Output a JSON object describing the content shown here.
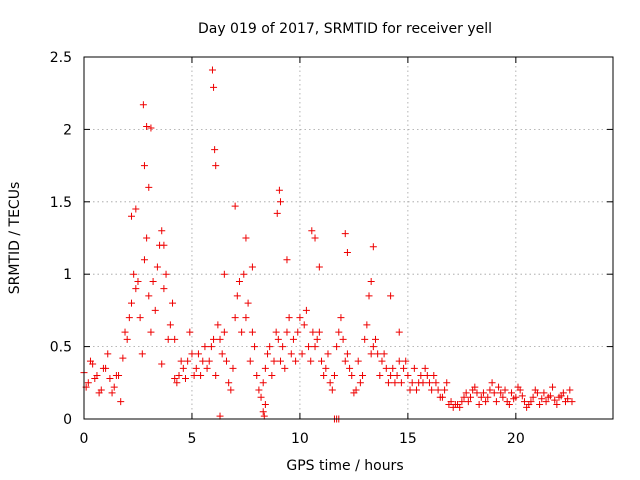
{
  "chart_data": {
    "type": "scatter",
    "title": "Day 019 of 2017, SRMTID for receiver yell",
    "xlabel": "GPS time / hours",
    "ylabel": "SRMTID / TECUs",
    "xlim": [
      0,
      24.5
    ],
    "ylim": [
      0,
      2.5
    ],
    "xticks": [
      0,
      5,
      10,
      15,
      20
    ],
    "yticks": [
      0,
      0.5,
      1,
      1.5,
      2,
      2.5
    ],
    "xtick_labels": [
      "0",
      "5",
      "10",
      "15",
      "20"
    ],
    "ytick_labels": [
      "0",
      "0.5",
      "1",
      "1.5",
      "2",
      "2.5"
    ],
    "grid": true,
    "marker": "plus",
    "color": "#ee0000",
    "series": [
      {
        "name": "SRMTID",
        "x": [
          0.0,
          0.2,
          0.4,
          0.6,
          0.8,
          1.0,
          1.2,
          1.4,
          1.6,
          1.8,
          2.0,
          2.2,
          2.4,
          2.6,
          2.8,
          3.0,
          3.2,
          3.4,
          3.6,
          3.8,
          4.0,
          4.2,
          4.4,
          4.6,
          4.8,
          5.0,
          5.2,
          5.4,
          5.6,
          5.8,
          6.0,
          6.2,
          6.4,
          6.6,
          6.8,
          7.0,
          7.2,
          7.4,
          7.6,
          7.8,
          8.0,
          8.2,
          8.4,
          8.6,
          8.8,
          9.0,
          9.2,
          9.4,
          9.6,
          9.8,
          10.0,
          10.2,
          10.4,
          10.6,
          10.8,
          11.0,
          11.2,
          11.4,
          11.6,
          11.8,
          12.0,
          12.2,
          12.4,
          12.6,
          12.8,
          13.0,
          13.2,
          13.4,
          13.6,
          13.8,
          14.0,
          14.2,
          14.4,
          14.6,
          14.8,
          15.0,
          15.2,
          15.4,
          15.6,
          15.8,
          16.0,
          16.2,
          16.4,
          16.6,
          16.8,
          17.0,
          17.2,
          17.4,
          17.6,
          17.8,
          18.0,
          18.2,
          18.4,
          18.6,
          18.8,
          19.0,
          19.2,
          19.4,
          19.6,
          19.8,
          20.0,
          20.2,
          20.4,
          20.6,
          20.8,
          21.0,
          21.2,
          21.4,
          21.6,
          21.8,
          22.0,
          22.2,
          22.4,
          22.6,
          0.1,
          0.3,
          0.5,
          0.7,
          0.9,
          1.1,
          1.3,
          1.5,
          1.7,
          1.9,
          2.1,
          2.3,
          2.5,
          2.7,
          2.9,
          3.1,
          3.3,
          3.5,
          3.7,
          3.9,
          4.1,
          4.3,
          4.5,
          4.7,
          4.9,
          5.1,
          5.3,
          5.5,
          5.7,
          5.9,
          6.1,
          6.3,
          6.5,
          6.7,
          6.9,
          7.1,
          7.3,
          7.5,
          7.7,
          7.9,
          8.1,
          8.3,
          8.5,
          8.7,
          8.9,
          9.1,
          9.3,
          9.5,
          9.7,
          9.9,
          10.1,
          10.3,
          10.5,
          10.7,
          10.9,
          11.1,
          11.3,
          11.5,
          11.7,
          11.9,
          12.1,
          12.3,
          12.5,
          12.7,
          12.9,
          13.1,
          13.3,
          13.5,
          13.7,
          13.9,
          14.1,
          14.3,
          14.5,
          14.7,
          14.9,
          15.1,
          15.3,
          15.5,
          15.7,
          15.9,
          16.1,
          16.3,
          16.5,
          16.7,
          16.9,
          17.1,
          17.3,
          17.5,
          17.7,
          17.9,
          18.1,
          18.3,
          18.5,
          18.7,
          18.9,
          19.1,
          19.3,
          19.5,
          19.7,
          19.9,
          20.1,
          20.3,
          20.5,
          20.7,
          20.9,
          21.1,
          21.3,
          21.5,
          21.7,
          21.9,
          22.1,
          22.3,
          22.5,
          2.75,
          2.8,
          2.9,
          3.0,
          3.1,
          5.95,
          6.0,
          6.05,
          6.1,
          8.95,
          9.05,
          9.1,
          10.55,
          11.6,
          11.7,
          11.8,
          12.1,
          12.2,
          13.3,
          13.4,
          7.0,
          7.5,
          2.2,
          2.4,
          6.5,
          7.8,
          8.3,
          8.35,
          8.4,
          6.3,
          4.2,
          3.6,
          3.7,
          9.4,
          10.7,
          10.9,
          14.2,
          14.6
        ],
        "y": [
          0.32,
          0.25,
          0.38,
          0.3,
          0.2,
          0.35,
          0.28,
          0.22,
          0.3,
          0.42,
          0.55,
          0.8,
          0.9,
          0.7,
          1.1,
          0.85,
          0.95,
          1.05,
          1.3,
          1.0,
          0.65,
          0.55,
          0.3,
          0.35,
          0.4,
          0.45,
          0.35,
          0.3,
          0.5,
          0.4,
          0.55,
          0.65,
          0.45,
          0.4,
          0.2,
          0.7,
          0.95,
          1.0,
          0.8,
          0.6,
          0.3,
          0.15,
          0.35,
          0.5,
          0.4,
          0.55,
          0.5,
          0.6,
          0.45,
          0.4,
          0.7,
          0.65,
          0.5,
          0.6,
          0.55,
          0.4,
          0.35,
          0.25,
          0.3,
          0.6,
          0.55,
          0.45,
          0.3,
          0.2,
          0.25,
          0.55,
          0.85,
          0.5,
          0.45,
          0.4,
          0.35,
          0.3,
          0.25,
          0.4,
          0.35,
          0.3,
          0.25,
          0.2,
          0.3,
          0.35,
          0.25,
          0.3,
          0.2,
          0.15,
          0.25,
          0.12,
          0.1,
          0.08,
          0.15,
          0.12,
          0.2,
          0.18,
          0.15,
          0.12,
          0.2,
          0.18,
          0.22,
          0.15,
          0.12,
          0.18,
          0.15,
          0.2,
          0.12,
          0.1,
          0.15,
          0.18,
          0.14,
          0.12,
          0.16,
          0.13,
          0.15,
          0.18,
          0.14,
          0.12,
          0.22,
          0.4,
          0.28,
          0.18,
          0.35,
          0.45,
          0.18,
          0.3,
          0.12,
          0.6,
          0.7,
          1.0,
          0.95,
          0.45,
          1.25,
          0.6,
          0.75,
          1.2,
          0.9,
          0.55,
          0.8,
          0.25,
          0.4,
          0.28,
          0.6,
          0.3,
          0.45,
          0.4,
          0.35,
          0.5,
          0.3,
          0.55,
          0.6,
          0.25,
          0.35,
          0.85,
          0.6,
          0.7,
          0.4,
          0.5,
          0.2,
          0.25,
          0.45,
          0.3,
          0.6,
          0.4,
          0.35,
          0.7,
          0.55,
          0.6,
          0.45,
          0.75,
          0.4,
          0.5,
          0.6,
          0.3,
          0.45,
          0.2,
          0.5,
          0.7,
          0.4,
          0.35,
          0.18,
          0.4,
          0.3,
          0.65,
          0.45,
          0.55,
          0.3,
          0.45,
          0.25,
          0.35,
          0.3,
          0.25,
          0.4,
          0.2,
          0.35,
          0.25,
          0.25,
          0.3,
          0.2,
          0.25,
          0.15,
          0.2,
          0.1,
          0.08,
          0.1,
          0.12,
          0.18,
          0.15,
          0.22,
          0.1,
          0.18,
          0.15,
          0.25,
          0.12,
          0.18,
          0.2,
          0.1,
          0.14,
          0.22,
          0.16,
          0.08,
          0.12,
          0.2,
          0.1,
          0.18,
          0.15,
          0.22,
          0.1,
          0.16,
          0.12,
          0.2,
          2.17,
          1.75,
          2.02,
          1.6,
          2.01,
          2.41,
          2.29,
          1.86,
          1.75,
          1.42,
          1.58,
          1.5,
          1.3,
          0.0,
          0.0,
          0.0,
          1.28,
          1.15,
          0.95,
          1.19,
          1.47,
          1.25,
          1.4,
          1.45,
          1.0,
          1.05,
          0.05,
          0.02,
          0.1,
          0.02,
          0.28,
          0.38,
          1.2,
          1.1,
          1.25,
          1.05,
          0.85,
          0.6
        ]
      }
    ]
  }
}
